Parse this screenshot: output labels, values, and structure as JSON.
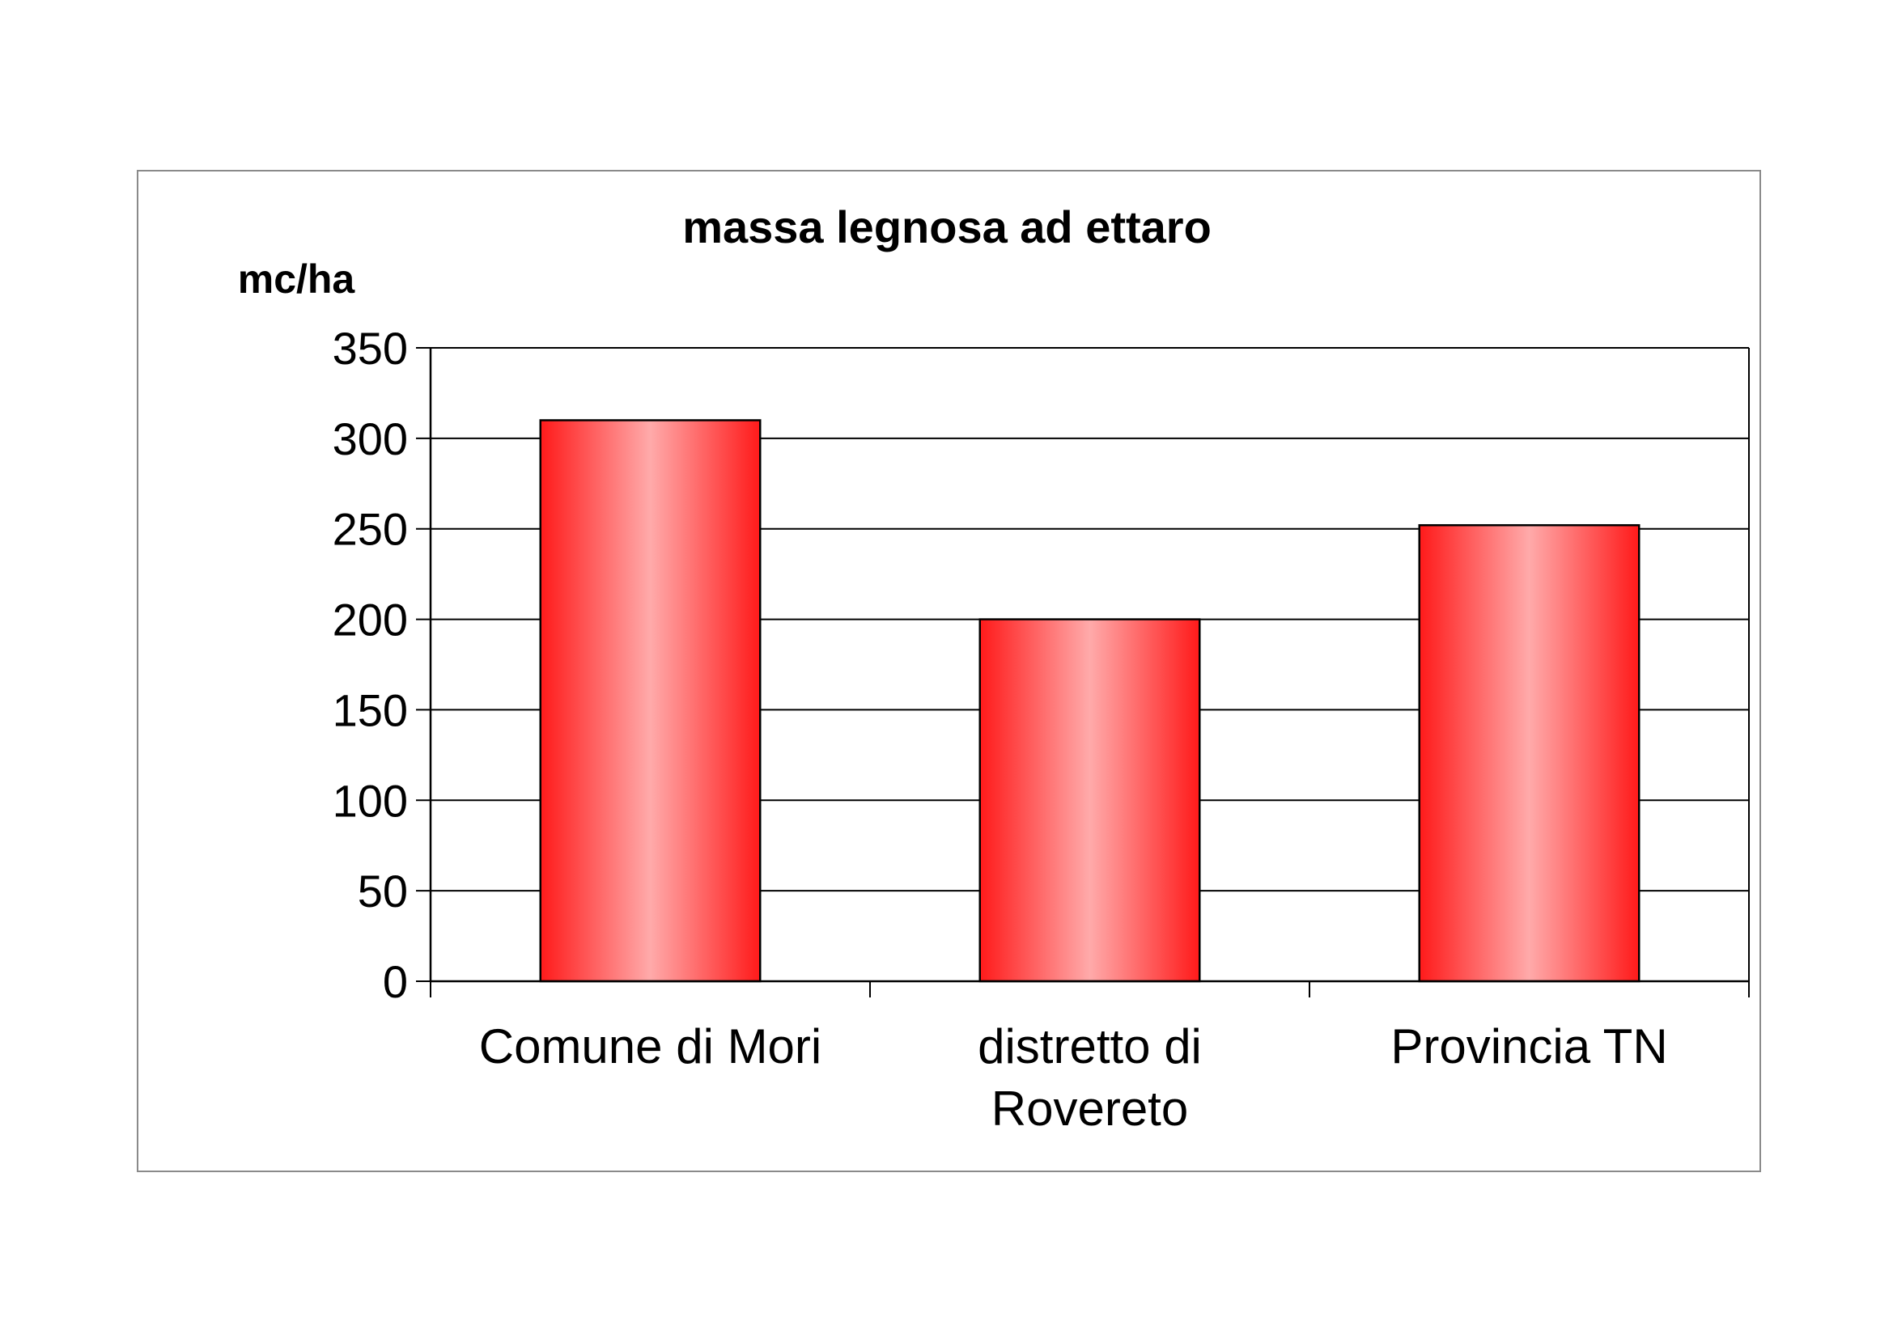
{
  "chart_data": {
    "type": "bar",
    "title": "massa legnosa ad ettaro",
    "ylabel": "mc/ha",
    "xlabel": "",
    "categories": [
      [
        "Comune di Mori"
      ],
      [
        "distretto di",
        "Rovereto"
      ],
      [
        "Provincia TN"
      ]
    ],
    "values": [
      310,
      200,
      252
    ],
    "ylim": [
      0,
      350
    ],
    "yticks": [
      0,
      50,
      100,
      150,
      200,
      250,
      300,
      350
    ],
    "grid": true,
    "legend": "none",
    "colors": {
      "bar_edge": "#ff1a1a",
      "bar_center": "#ffaaaa",
      "bar_outline": "#000000",
      "grid": "#000000",
      "frame": "#8a8a8a"
    }
  }
}
